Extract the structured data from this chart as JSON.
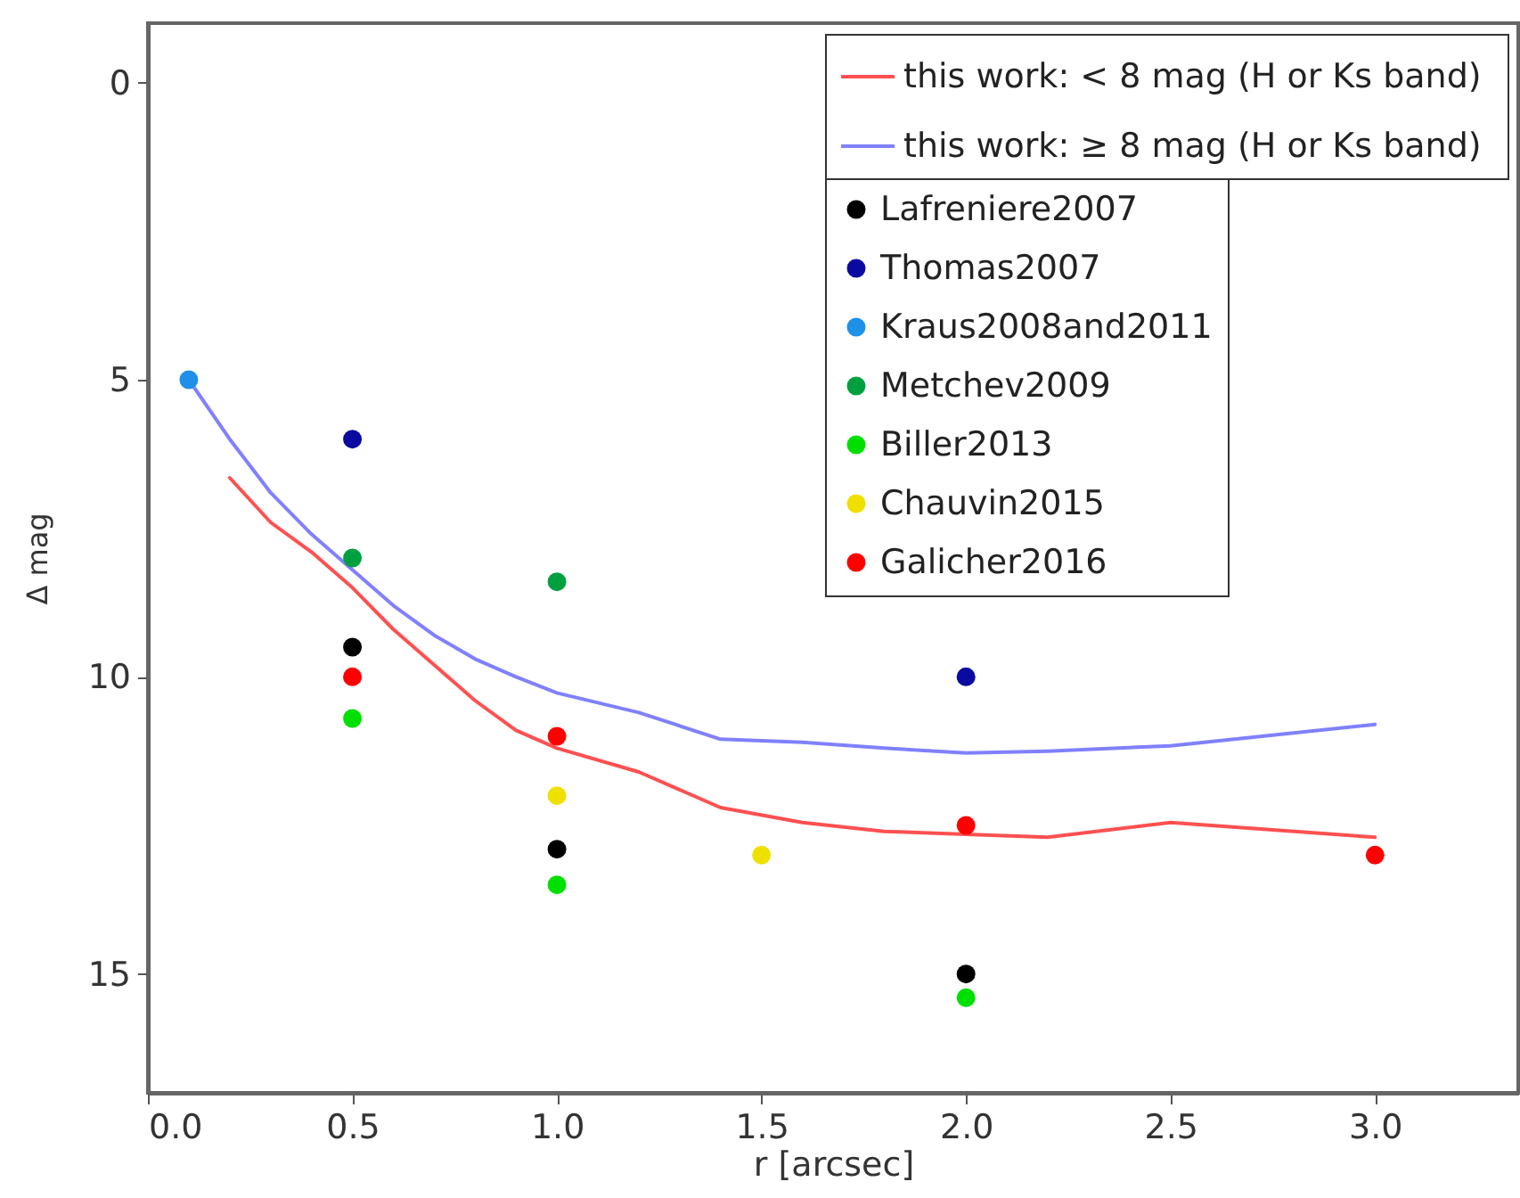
{
  "chart_data": {
    "type": "scatter",
    "xlabel": "r [arcsec]",
    "ylabel": "Δ mag",
    "xlim": [
      0,
      3.35
    ],
    "xticks": [
      {
        "value": 0,
        "label": "0.0"
      },
      {
        "value": 0.5,
        "label": "0.5"
      },
      {
        "value": 1,
        "label": "1.0"
      },
      {
        "value": 1.5,
        "label": "1.5"
      },
      {
        "value": 2,
        "label": "2.0"
      },
      {
        "value": 2.5,
        "label": "2.5"
      },
      {
        "value": 3,
        "label": "3.0"
      }
    ],
    "ylim": [
      17,
      -1
    ],
    "yticks": [
      0,
      5,
      10,
      15
    ],
    "grid": false,
    "legend": "top right",
    "marker": "circle",
    "line_style": "solid",
    "series": [
      {
        "name": "this work:  < 8 mag (H or Ks band)",
        "type": "line",
        "marker": "none",
        "color": "#ff5050",
        "x": [
          0.2,
          0.3,
          0.4,
          0.5,
          0.6,
          0.7,
          0.8,
          0.9,
          1.0,
          1.2,
          1.4,
          1.6,
          1.8,
          2.0,
          2.2,
          2.5,
          3.0
        ],
        "values": [
          6.65,
          7.4,
          7.9,
          8.5,
          9.2,
          9.8,
          10.4,
          10.9,
          11.2,
          11.6,
          12.2,
          12.45,
          12.6,
          12.65,
          12.7,
          12.45,
          12.7
        ]
      },
      {
        "name": "this work:  ≥ 8 mag (H or Ks band)",
        "type": "line",
        "marker": "none",
        "color": "#8080ff",
        "x": [
          0.1,
          0.2,
          0.3,
          0.4,
          0.5,
          0.6,
          0.7,
          0.8,
          0.9,
          1.0,
          1.2,
          1.4,
          1.6,
          1.8,
          2.0,
          2.2,
          2.5,
          3.0
        ],
        "values": [
          5.0,
          6.0,
          6.9,
          7.6,
          8.2,
          8.8,
          9.3,
          9.7,
          10.0,
          10.27,
          10.6,
          11.05,
          11.1,
          11.2,
          11.28,
          11.25,
          11.16,
          10.8
        ]
      },
      {
        "name": "Lafreniere2007",
        "color": "#000000",
        "x": [
          0.5,
          1.0,
          2.0
        ],
        "values": [
          9.5,
          12.9,
          15.0
        ]
      },
      {
        "name": "Thomas2007",
        "color": "#0a0aa0",
        "x": [
          0.5,
          2.0
        ],
        "values": [
          6.0,
          10.0
        ]
      },
      {
        "name": "Kraus2008and2011",
        "color": "#1e90e8",
        "x": [
          0.1
        ],
        "values": [
          5.0
        ]
      },
      {
        "name": "Metchev2009",
        "color": "#00a040",
        "x": [
          0.5,
          1.0
        ],
        "values": [
          8.0,
          8.4
        ]
      },
      {
        "name": "Biller2013",
        "color": "#00e000",
        "x": [
          0.5,
          1.0,
          2.0
        ],
        "values": [
          10.7,
          13.5,
          15.4
        ]
      },
      {
        "name": "Chauvin2015",
        "color": "#f0e000",
        "x": [
          1.0,
          1.5
        ],
        "values": [
          12.0,
          13.0
        ]
      },
      {
        "name": "Galicher2016",
        "color": "#ff0000",
        "x": [
          0.5,
          1.0,
          2.0,
          3.0
        ],
        "values": [
          10.0,
          11.0,
          12.5,
          13.0
        ]
      }
    ]
  }
}
